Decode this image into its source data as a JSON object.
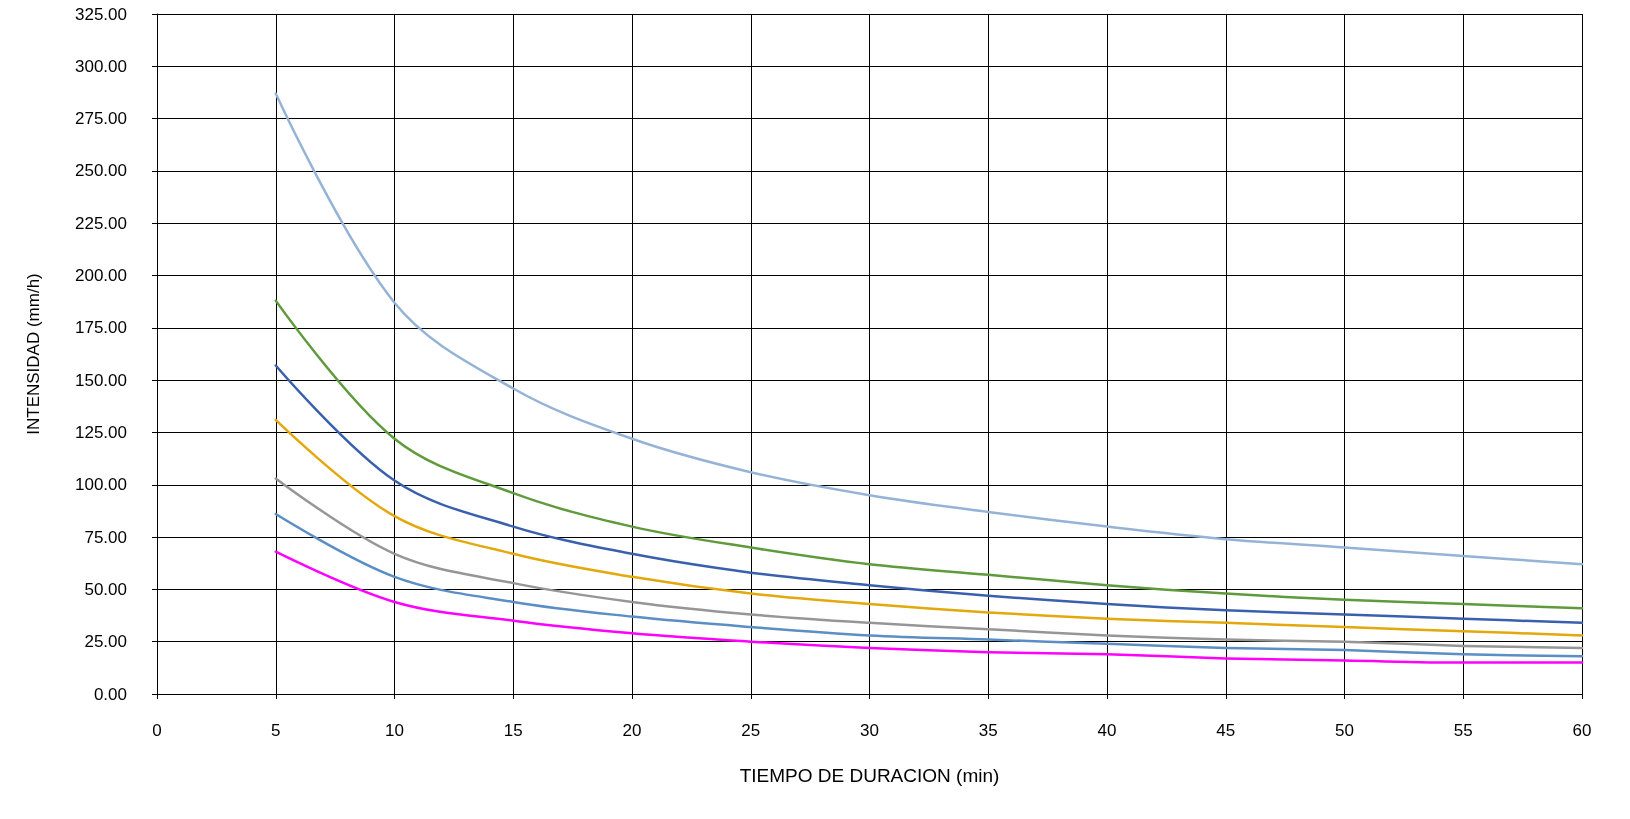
{
  "chart_data": {
    "type": "line",
    "xlabel": "TIEMPO DE DURACION (min)",
    "ylabel": "INTENSIDAD (mm/h)",
    "x": [
      5,
      10,
      15,
      20,
      25,
      30,
      35,
      40,
      45,
      50,
      55,
      60
    ],
    "series": [
      {
        "color": "#95b3d7",
        "values": [
          287,
          187,
          146,
          122,
          106,
          95,
          87,
          80,
          74,
          70,
          66,
          62
        ]
      },
      {
        "color": "#5f9a3c",
        "values": [
          188,
          122,
          96,
          80,
          70,
          62,
          57,
          52,
          48,
          45,
          43,
          41
        ]
      },
      {
        "color": "#3a60ad",
        "values": [
          157,
          102,
          80,
          67,
          58,
          52,
          47,
          43,
          40,
          38,
          36,
          34
        ]
      },
      {
        "color": "#e3a80c",
        "values": [
          131,
          85,
          67,
          56,
          48,
          43,
          39,
          36,
          34,
          32,
          30,
          28
        ]
      },
      {
        "color": "#969696",
        "values": [
          103,
          67,
          53,
          44,
          38,
          34,
          31,
          28,
          26,
          25,
          23,
          22
        ]
      },
      {
        "color": "#5a8ec4",
        "values": [
          86,
          56,
          44,
          37,
          32,
          28,
          26,
          24,
          22,
          21,
          19,
          18
        ]
      },
      {
        "color": "#ff00ff",
        "values": [
          68,
          44,
          35,
          29,
          25,
          22,
          20,
          19,
          17,
          16,
          15,
          15
        ]
      }
    ],
    "xlim": [
      0,
      60
    ],
    "xticks": [
      0,
      5,
      10,
      15,
      20,
      25,
      30,
      35,
      40,
      45,
      50,
      55,
      60
    ],
    "ylim": [
      0,
      325
    ],
    "yticks": [
      {
        "value": 0,
        "label": "0.00"
      },
      {
        "value": 25,
        "label": "25.00"
      },
      {
        "value": 50,
        "label": "50.00"
      },
      {
        "value": 75,
        "label": "75.00"
      },
      {
        "value": 100,
        "label": "100.00"
      },
      {
        "value": 125,
        "label": "125.00"
      },
      {
        "value": 150,
        "label": "150.00"
      },
      {
        "value": 175,
        "label": "175.00"
      },
      {
        "value": 200,
        "label": "200.00"
      },
      {
        "value": 225,
        "label": "225.00"
      },
      {
        "value": 250,
        "label": "250.00"
      },
      {
        "value": 275,
        "label": "275.00"
      },
      {
        "value": 300,
        "label": "300.00"
      },
      {
        "value": 325,
        "label": "325.00"
      }
    ],
    "grid": true,
    "marker": "none",
    "line_style": "solid"
  }
}
